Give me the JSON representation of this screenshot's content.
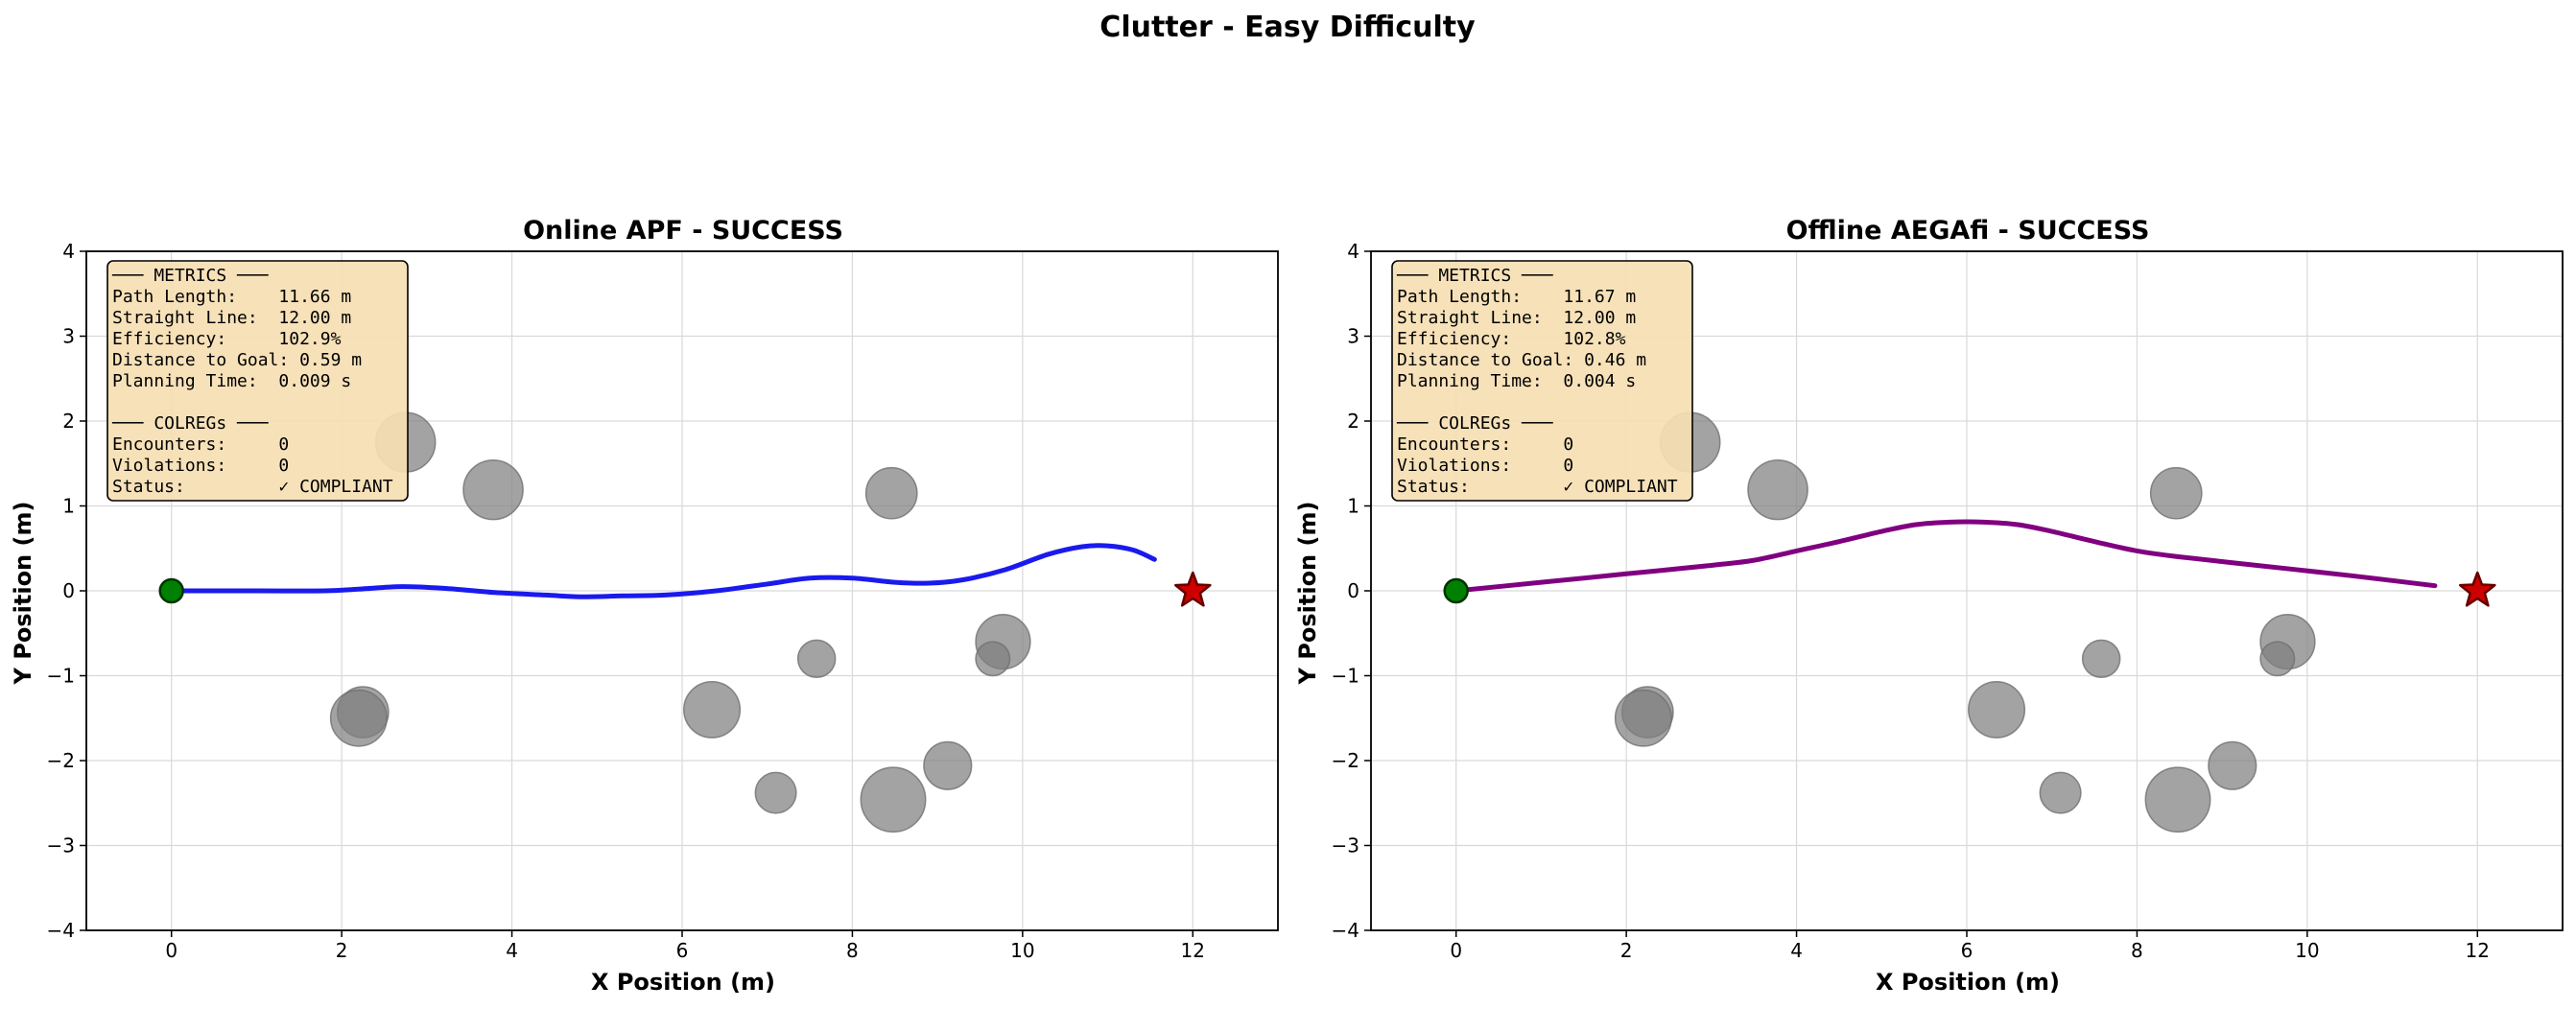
{
  "suptitle": "Clutter - Easy Difficulty",
  "chart_data": [
    {
      "type": "line",
      "title": "Online APF - SUCCESS",
      "xlabel": "X Position (m)",
      "ylabel": "Y Position (m)",
      "xlim": [
        -1,
        13
      ],
      "ylim": [
        -4,
        4
      ],
      "xticks": [
        0,
        2,
        4,
        6,
        8,
        10,
        12
      ],
      "yticks": [
        -4,
        -3,
        -2,
        -1,
        0,
        1,
        2,
        3,
        4
      ],
      "xtick_labels": [
        "0",
        "2",
        "4",
        "6",
        "8",
        "10",
        "12"
      ],
      "ytick_labels": [
        "−4",
        "−3",
        "−2",
        "−1",
        "0",
        "1",
        "2",
        "3",
        "4"
      ],
      "grid": true,
      "path_color": "#1a1aee",
      "start": {
        "x": 0,
        "y": 0,
        "color": "#008000"
      },
      "goal": {
        "x": 12,
        "y": 0,
        "color": "#cc0000"
      },
      "obstacles": [
        {
          "x": 2.75,
          "y": 1.75,
          "r": 0.35
        },
        {
          "x": 3.78,
          "y": 1.19,
          "r": 0.35
        },
        {
          "x": 8.46,
          "y": 1.15,
          "r": 0.3
        },
        {
          "x": 2.25,
          "y": -1.43,
          "r": 0.3
        },
        {
          "x": 2.2,
          "y": -1.5,
          "r": 0.33
        },
        {
          "x": 6.35,
          "y": -1.4,
          "r": 0.33
        },
        {
          "x": 7.58,
          "y": -0.8,
          "r": 0.22
        },
        {
          "x": 9.77,
          "y": -0.6,
          "r": 0.32
        },
        {
          "x": 9.65,
          "y": -0.8,
          "r": 0.2
        },
        {
          "x": 9.12,
          "y": -2.06,
          "r": 0.28
        },
        {
          "x": 7.1,
          "y": -2.38,
          "r": 0.24
        },
        {
          "x": 8.48,
          "y": -2.46,
          "r": 0.38
        }
      ],
      "path": [
        [
          0,
          0
        ],
        [
          1.0,
          0.0
        ],
        [
          1.8,
          0.0
        ],
        [
          2.2,
          0.02
        ],
        [
          2.7,
          0.05
        ],
        [
          3.2,
          0.03
        ],
        [
          3.8,
          -0.02
        ],
        [
          4.4,
          -0.05
        ],
        [
          4.8,
          -0.07
        ],
        [
          5.3,
          -0.06
        ],
        [
          5.8,
          -0.05
        ],
        [
          6.4,
          0.0
        ],
        [
          7.0,
          0.08
        ],
        [
          7.5,
          0.15
        ],
        [
          8.0,
          0.15
        ],
        [
          8.5,
          0.1
        ],
        [
          8.9,
          0.09
        ],
        [
          9.3,
          0.13
        ],
        [
          9.8,
          0.25
        ],
        [
          10.3,
          0.43
        ],
        [
          10.7,
          0.52
        ],
        [
          11.0,
          0.53
        ],
        [
          11.3,
          0.48
        ],
        [
          11.55,
          0.37
        ]
      ],
      "metrics_lines": [
        "─── METRICS ───",
        "Path Length:    11.66 m",
        "Straight Line:  12.00 m",
        "Efficiency:     102.9%",
        "Distance to Goal: 0.59 m",
        "Planning Time:  0.009 s",
        "",
        "─── COLREGs ───",
        "Encounters:     0",
        "Violations:     0",
        "Status:         ✓ COMPLIANT"
      ]
    },
    {
      "type": "line",
      "title": "Offline AEGAfi - SUCCESS",
      "xlabel": "X Position (m)",
      "ylabel": "Y Position (m)",
      "xlim": [
        -1,
        13
      ],
      "ylim": [
        -4,
        4
      ],
      "xticks": [
        0,
        2,
        4,
        6,
        8,
        10,
        12
      ],
      "yticks": [
        -4,
        -3,
        -2,
        -1,
        0,
        1,
        2,
        3,
        4
      ],
      "xtick_labels": [
        "0",
        "2",
        "4",
        "6",
        "8",
        "10",
        "12"
      ],
      "ytick_labels": [
        "−4",
        "−3",
        "−2",
        "−1",
        "0",
        "1",
        "2",
        "3",
        "4"
      ],
      "grid": true,
      "path_color": "#800080",
      "start": {
        "x": 0,
        "y": 0,
        "color": "#008000"
      },
      "goal": {
        "x": 12,
        "y": 0,
        "color": "#cc0000"
      },
      "obstacles": [
        {
          "x": 2.75,
          "y": 1.75,
          "r": 0.35
        },
        {
          "x": 3.78,
          "y": 1.19,
          "r": 0.35
        },
        {
          "x": 8.46,
          "y": 1.15,
          "r": 0.3
        },
        {
          "x": 2.25,
          "y": -1.43,
          "r": 0.3
        },
        {
          "x": 2.2,
          "y": -1.5,
          "r": 0.33
        },
        {
          "x": 6.35,
          "y": -1.4,
          "r": 0.33
        },
        {
          "x": 7.58,
          "y": -0.8,
          "r": 0.22
        },
        {
          "x": 9.77,
          "y": -0.6,
          "r": 0.32
        },
        {
          "x": 9.65,
          "y": -0.8,
          "r": 0.2
        },
        {
          "x": 9.12,
          "y": -2.06,
          "r": 0.28
        },
        {
          "x": 7.1,
          "y": -2.38,
          "r": 0.24
        },
        {
          "x": 8.48,
          "y": -2.46,
          "r": 0.38
        }
      ],
      "path": [
        [
          0,
          0
        ],
        [
          1.0,
          0.1
        ],
        [
          2.0,
          0.2
        ],
        [
          3.0,
          0.3
        ],
        [
          3.5,
          0.36
        ],
        [
          4.0,
          0.47
        ],
        [
          4.5,
          0.58
        ],
        [
          5.0,
          0.7
        ],
        [
          5.4,
          0.78
        ],
        [
          5.8,
          0.81
        ],
        [
          6.2,
          0.81
        ],
        [
          6.6,
          0.78
        ],
        [
          7.0,
          0.7
        ],
        [
          7.5,
          0.58
        ],
        [
          8.0,
          0.47
        ],
        [
          8.5,
          0.4
        ],
        [
          9.5,
          0.29
        ],
        [
          10.5,
          0.18
        ],
        [
          11.5,
          0.06
        ]
      ],
      "metrics_lines": [
        "─── METRICS ───",
        "Path Length:    11.67 m",
        "Straight Line:  12.00 m",
        "Efficiency:     102.8%",
        "Distance to Goal: 0.46 m",
        "Planning Time:  0.004 s",
        "",
        "─── COLREGs ───",
        "Encounters:     0",
        "Violations:     0",
        "Status:         ✓ COMPLIANT"
      ]
    }
  ]
}
